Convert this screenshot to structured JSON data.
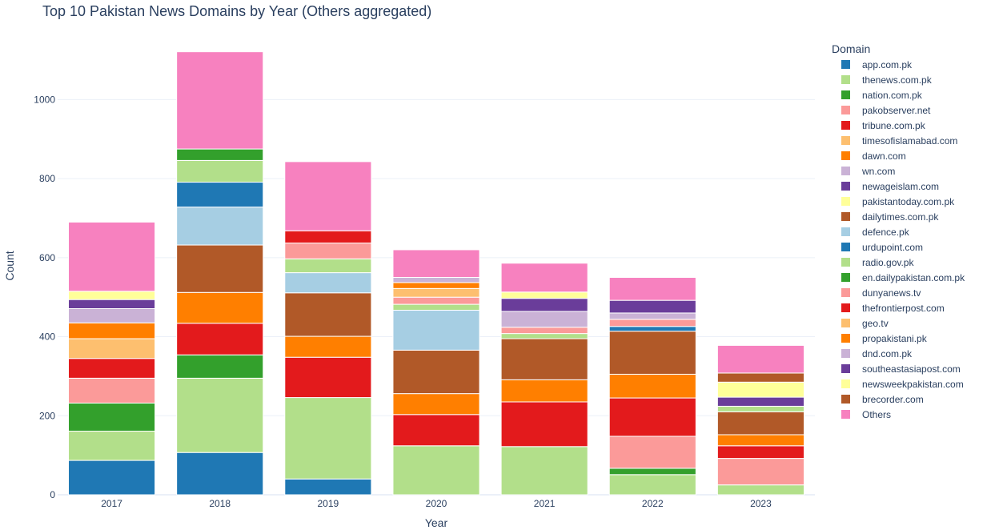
{
  "chart_data": {
    "type": "bar",
    "barmode": "stack",
    "title": "Top 10 Pakistan News Domains by Year (Others aggregated)",
    "xlabel": "Year",
    "ylabel": "Count",
    "ylim": [
      0,
      1175
    ],
    "yticks": [
      0,
      200,
      400,
      600,
      800,
      1000
    ],
    "legend_title": "Domain",
    "legend_position": "right",
    "categories": [
      "2017",
      "2018",
      "2019",
      "2020",
      "2021",
      "2022",
      "2023"
    ],
    "series": [
      {
        "name": "app.com.pk",
        "color": "#1f78b4",
        "values": [
          87,
          107,
          40,
          0,
          0,
          0,
          0
        ]
      },
      {
        "name": "thenews.com.pk",
        "color": "#b2df8a",
        "values": [
          74,
          188,
          206,
          124,
          122,
          51,
          25
        ]
      },
      {
        "name": "nation.com.pk",
        "color": "#33a02c",
        "values": [
          71,
          59,
          0,
          0,
          0,
          16,
          0
        ]
      },
      {
        "name": "pakobserver.net",
        "color": "#fb9a99",
        "values": [
          63,
          0,
          0,
          0,
          0,
          81,
          67
        ]
      },
      {
        "name": "tribune.com.pk",
        "color": "#e31a1c",
        "values": [
          50,
          80,
          102,
          79,
          113,
          97,
          32
        ]
      },
      {
        "name": "timesofislamabad.com",
        "color": "#fdbf6f",
        "values": [
          50,
          0,
          0,
          0,
          0,
          0,
          0
        ]
      },
      {
        "name": "dawn.com",
        "color": "#ff7f00",
        "values": [
          40,
          78,
          53,
          53,
          56,
          60,
          28
        ]
      },
      {
        "name": "wn.com",
        "color": "#cab2d6",
        "values": [
          36,
          0,
          0,
          0,
          0,
          0,
          0
        ]
      },
      {
        "name": "newageislam.com",
        "color": "#6a3d9a",
        "values": [
          23,
          0,
          0,
          0,
          0,
          0,
          0
        ]
      },
      {
        "name": "pakistantoday.com.pk",
        "color": "#ffff99",
        "values": [
          21,
          0,
          0,
          0,
          0,
          0,
          0
        ]
      },
      {
        "name": "dailytimes.com.pk",
        "color": "#b15928",
        "values": [
          0,
          120,
          110,
          110,
          104,
          109,
          58
        ]
      },
      {
        "name": "defence.pk",
        "color": "#a6cee3",
        "values": [
          0,
          96,
          51,
          101,
          0,
          0,
          0
        ]
      },
      {
        "name": "urdupoint.com",
        "color": "#1f78b4",
        "values": [
          0,
          63,
          0,
          0,
          0,
          12,
          0
        ]
      },
      {
        "name": "radio.gov.pk",
        "color": "#b2df8a",
        "values": [
          0,
          55,
          35,
          15,
          13,
          0,
          14
        ]
      },
      {
        "name": "en.dailypakistan.com.pk",
        "color": "#33a02c",
        "values": [
          0,
          29,
          0,
          0,
          0,
          0,
          0
        ]
      },
      {
        "name": "dunyanews.tv",
        "color": "#fb9a99",
        "values": [
          0,
          0,
          40,
          18,
          16,
          18,
          0
        ]
      },
      {
        "name": "thefrontierpost.com",
        "color": "#e31a1c",
        "values": [
          0,
          0,
          31,
          0,
          0,
          0,
          0
        ]
      },
      {
        "name": "geo.tv",
        "color": "#fdbf6f",
        "values": [
          0,
          0,
          0,
          22,
          0,
          0,
          0
        ]
      },
      {
        "name": "propakistani.pk",
        "color": "#ff7f00",
        "values": [
          0,
          0,
          0,
          15,
          0,
          0,
          0
        ]
      },
      {
        "name": "dnd.com.pk",
        "color": "#cab2d6",
        "values": [
          0,
          0,
          0,
          13,
          40,
          16,
          0
        ]
      },
      {
        "name": "southeastasiapost.com",
        "color": "#6a3d9a",
        "values": [
          0,
          0,
          0,
          0,
          33,
          32,
          23
        ]
      },
      {
        "name": "newsweekpakistan.com",
        "color": "#ffff99",
        "values": [
          0,
          0,
          0,
          0,
          16,
          0,
          38
        ]
      },
      {
        "name": "brecorder.com",
        "color": "#b15928",
        "values": [
          0,
          0,
          0,
          0,
          0,
          0,
          23
        ]
      },
      {
        "name": "Others",
        "color": "#f781bf",
        "values": [
          175,
          246,
          175,
          70,
          73,
          58,
          70
        ]
      }
    ]
  }
}
